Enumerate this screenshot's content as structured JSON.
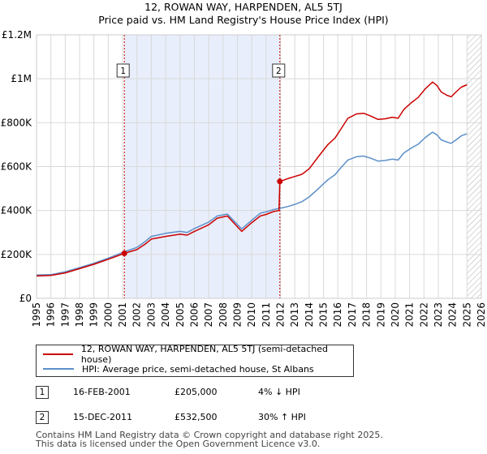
{
  "header": {
    "title": "12, ROWAN WAY, HARPENDEN, AL5 5TJ",
    "subtitle": "Price paid vs. HM Land Registry's House Price Index (HPI)"
  },
  "colors": {
    "property_line": "#cc0000",
    "hpi_line": "#5b8fc9",
    "shaded_band": "#e8eefb",
    "grid": "#d9d9d9",
    "marker_line": "#cc0000"
  },
  "chart_data": {
    "type": "line",
    "xlim": [
      1995,
      2026
    ],
    "ylim": [
      0,
      1200000
    ],
    "x_ticks": [
      "1995",
      "1996",
      "1997",
      "1998",
      "1999",
      "2000",
      "2001",
      "2002",
      "2003",
      "2004",
      "2005",
      "2006",
      "2007",
      "2008",
      "2009",
      "2010",
      "2011",
      "2012",
      "2013",
      "2014",
      "2015",
      "2016",
      "2017",
      "2018",
      "2019",
      "2020",
      "2021",
      "2022",
      "2023",
      "2024",
      "2025",
      "2026"
    ],
    "y_ticks": [
      {
        "value": 0,
        "label": "£0"
      },
      {
        "value": 200000,
        "label": "£200K"
      },
      {
        "value": 400000,
        "label": "£400K"
      },
      {
        "value": 600000,
        "label": "£600K"
      },
      {
        "value": 800000,
        "label": "£800K"
      },
      {
        "value": 1000000,
        "label": "£1M"
      },
      {
        "value": 1200000,
        "label": "£1.2M"
      }
    ],
    "shaded_range": [
      2001.12,
      2011.96
    ],
    "forecast_start": 2025.0,
    "series": [
      {
        "name": "12, ROWAN WAY, HARPENDEN, AL5 5TJ (semi-detached house)",
        "key": "property",
        "points": [
          [
            1995.0,
            102000
          ],
          [
            1996.0,
            104000
          ],
          [
            1997.0,
            116000
          ],
          [
            1998.0,
            135000
          ],
          [
            1999.0,
            155000
          ],
          [
            2000.0,
            178000
          ],
          [
            2001.12,
            205000
          ],
          [
            2002.0,
            222000
          ],
          [
            2002.6,
            248000
          ],
          [
            2003.0,
            270000
          ],
          [
            2004.0,
            282000
          ],
          [
            2005.0,
            292000
          ],
          [
            2005.5,
            288000
          ],
          [
            2006.0,
            305000
          ],
          [
            2007.0,
            335000
          ],
          [
            2007.6,
            365000
          ],
          [
            2008.3,
            375000
          ],
          [
            2008.8,
            340000
          ],
          [
            2009.3,
            305000
          ],
          [
            2010.0,
            345000
          ],
          [
            2010.6,
            375000
          ],
          [
            2011.0,
            382000
          ],
          [
            2011.5,
            395000
          ],
          [
            2011.9,
            400000
          ],
          [
            2011.96,
            532500
          ],
          [
            2012.5,
            545000
          ],
          [
            2013.0,
            555000
          ],
          [
            2013.5,
            565000
          ],
          [
            2014.0,
            590000
          ],
          [
            2014.7,
            650000
          ],
          [
            2015.3,
            700000
          ],
          [
            2015.8,
            730000
          ],
          [
            2016.2,
            770000
          ],
          [
            2016.7,
            820000
          ],
          [
            2017.3,
            840000
          ],
          [
            2017.8,
            843000
          ],
          [
            2018.3,
            830000
          ],
          [
            2018.8,
            815000
          ],
          [
            2019.3,
            818000
          ],
          [
            2019.8,
            825000
          ],
          [
            2020.2,
            820000
          ],
          [
            2020.6,
            860000
          ],
          [
            2021.1,
            890000
          ],
          [
            2021.6,
            915000
          ],
          [
            2022.1,
            955000
          ],
          [
            2022.6,
            985000
          ],
          [
            2022.9,
            970000
          ],
          [
            2023.2,
            940000
          ],
          [
            2023.6,
            925000
          ],
          [
            2023.9,
            918000
          ],
          [
            2024.2,
            938000
          ],
          [
            2024.6,
            962000
          ],
          [
            2025.0,
            973000
          ]
        ]
      },
      {
        "name": "HPI: Average price, semi-detached house, St Albans",
        "key": "hpi",
        "points": [
          [
            1995.0,
            106000
          ],
          [
            1996.0,
            108000
          ],
          [
            1997.0,
            121000
          ],
          [
            1998.0,
            140000
          ],
          [
            1999.0,
            160000
          ],
          [
            2000.0,
            183000
          ],
          [
            2001.12,
            212000
          ],
          [
            2002.0,
            232000
          ],
          [
            2002.6,
            260000
          ],
          [
            2003.0,
            282000
          ],
          [
            2004.0,
            296000
          ],
          [
            2005.0,
            305000
          ],
          [
            2005.5,
            300000
          ],
          [
            2006.0,
            318000
          ],
          [
            2007.0,
            347000
          ],
          [
            2007.6,
            375000
          ],
          [
            2008.3,
            384000
          ],
          [
            2008.8,
            350000
          ],
          [
            2009.3,
            316000
          ],
          [
            2010.0,
            356000
          ],
          [
            2010.6,
            388000
          ],
          [
            2011.0,
            394000
          ],
          [
            2011.5,
            404000
          ],
          [
            2011.96,
            410000
          ],
          [
            2012.5,
            418000
          ],
          [
            2013.0,
            428000
          ],
          [
            2013.5,
            440000
          ],
          [
            2014.0,
            462000
          ],
          [
            2014.7,
            503000
          ],
          [
            2015.3,
            540000
          ],
          [
            2015.8,
            563000
          ],
          [
            2016.2,
            594000
          ],
          [
            2016.7,
            630000
          ],
          [
            2017.3,
            645000
          ],
          [
            2017.8,
            648000
          ],
          [
            2018.3,
            638000
          ],
          [
            2018.8,
            625000
          ],
          [
            2019.3,
            628000
          ],
          [
            2019.8,
            634000
          ],
          [
            2020.2,
            630000
          ],
          [
            2020.6,
            662000
          ],
          [
            2021.1,
            684000
          ],
          [
            2021.6,
            702000
          ],
          [
            2022.1,
            733000
          ],
          [
            2022.6,
            757000
          ],
          [
            2022.9,
            745000
          ],
          [
            2023.2,
            722000
          ],
          [
            2023.6,
            712000
          ],
          [
            2023.9,
            706000
          ],
          [
            2024.2,
            720000
          ],
          [
            2024.6,
            740000
          ],
          [
            2025.0,
            750000
          ]
        ]
      }
    ],
    "transactions": [
      {
        "label": "1",
        "x": 2001.12,
        "y": 205000
      },
      {
        "label": "2",
        "x": 2011.96,
        "y": 532500
      }
    ]
  },
  "legend": {
    "items": [
      {
        "label": "12, ROWAN WAY, HARPENDEN, AL5 5TJ (semi-detached house)"
      },
      {
        "label": "HPI: Average price, semi-detached house, St Albans"
      }
    ]
  },
  "transactions_table": [
    {
      "num": "1",
      "date": "16-FEB-2001",
      "price": "£205,000",
      "hpi": "4% ↓ HPI"
    },
    {
      "num": "2",
      "date": "15-DEC-2011",
      "price": "£532,500",
      "hpi": "30% ↑ HPI"
    }
  ],
  "footer": {
    "line1": "Contains HM Land Registry data © Crown copyright and database right 2025.",
    "line2": "This data is licensed under the Open Government Licence v3.0."
  }
}
